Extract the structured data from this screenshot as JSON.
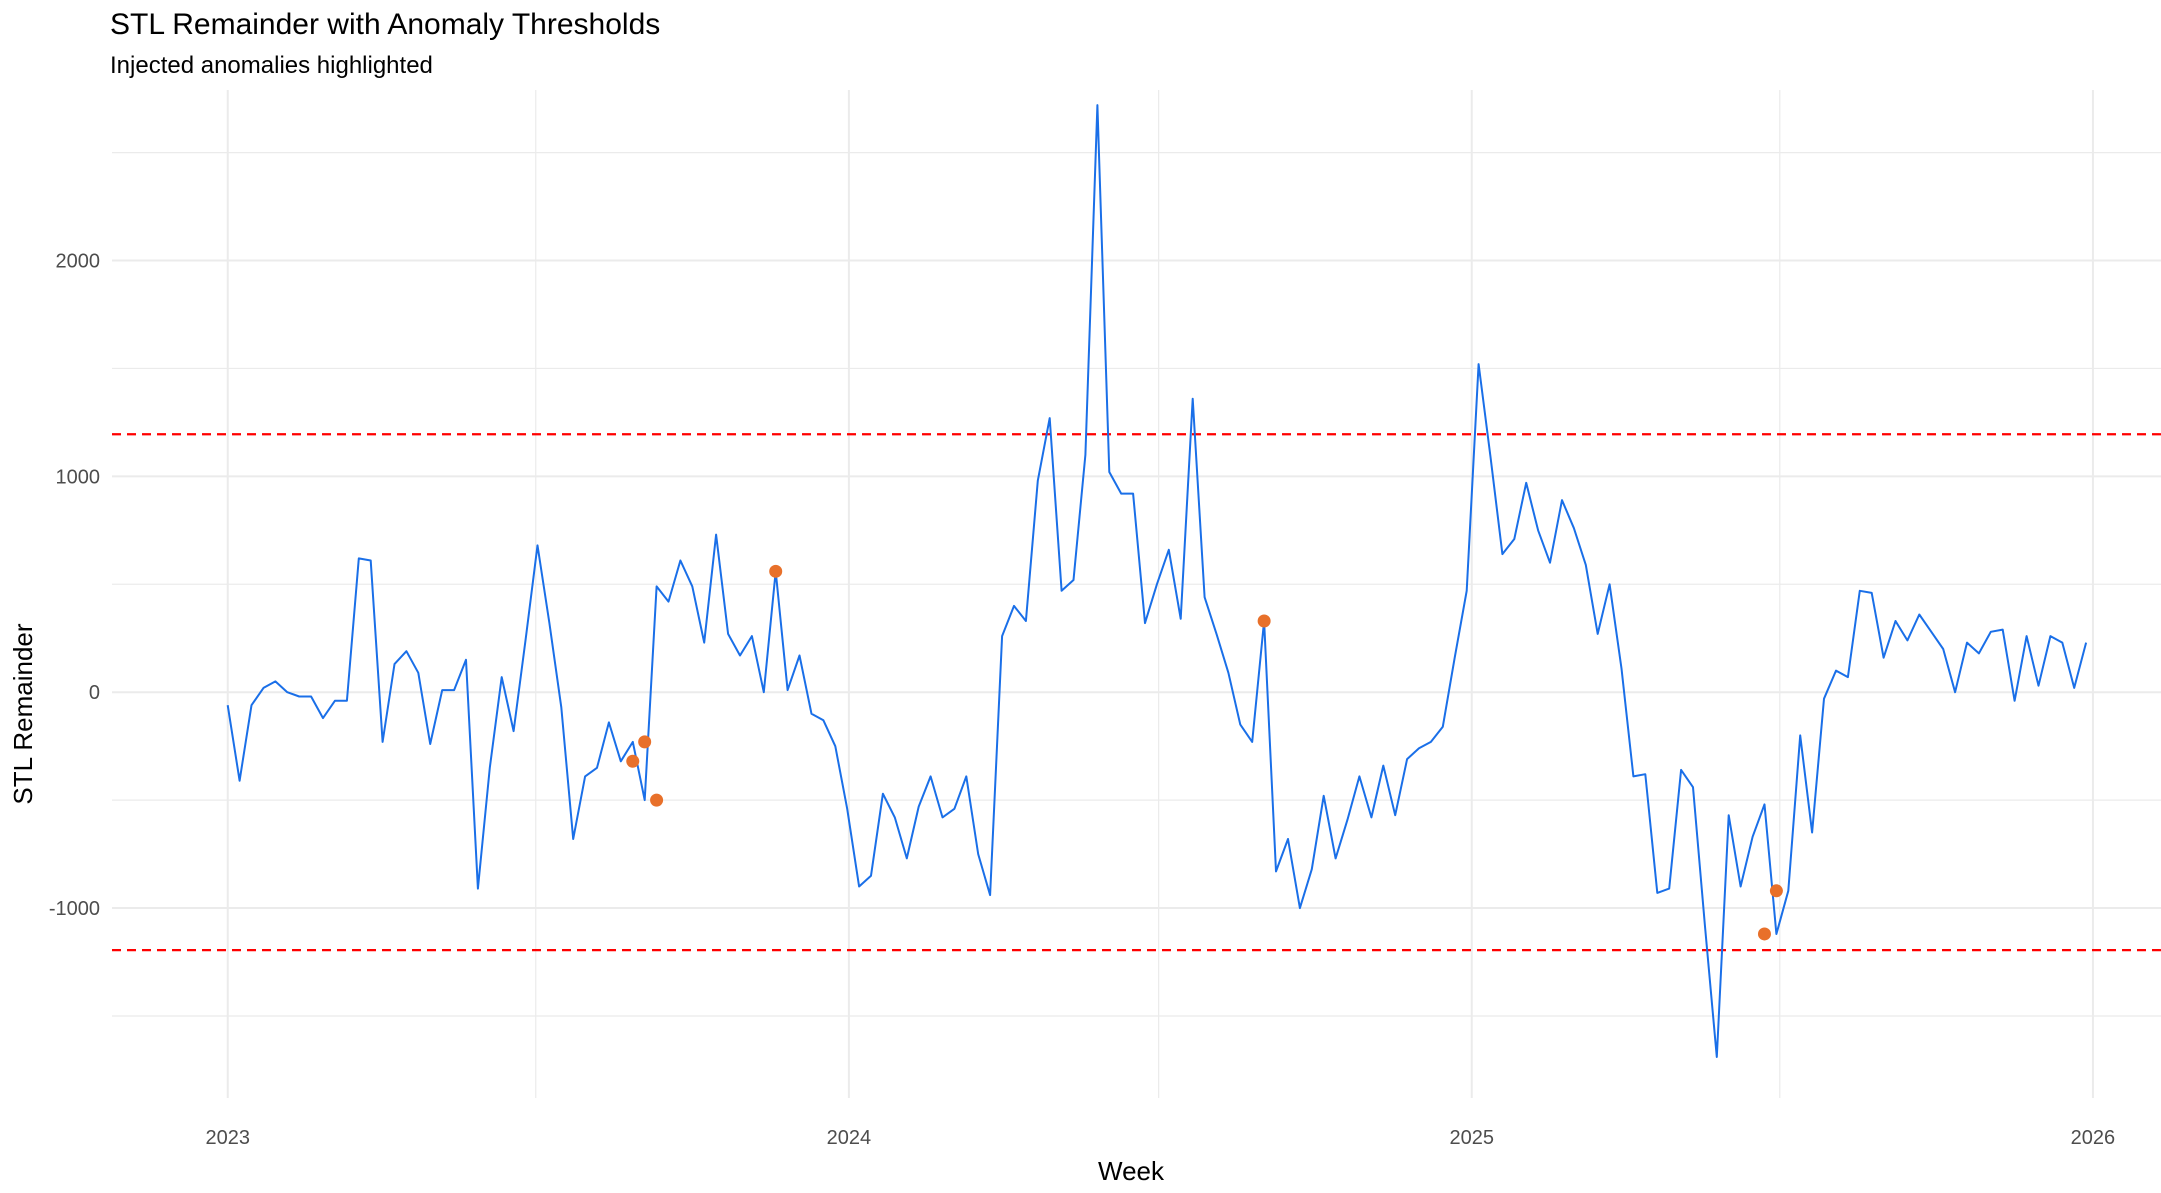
{
  "chart_data": {
    "type": "line",
    "title": "STL Remainder with Anomaly Thresholds",
    "subtitle": "Injected anomalies highlighted",
    "xlabel": "Week",
    "ylabel": "STL Remainder",
    "x_tick_labels": [
      "2023",
      "2024",
      "2025",
      "2026"
    ],
    "y_tick_labels": [
      "-1000",
      "0",
      "1000",
      "2000"
    ],
    "xlim": [
      "2022-10-25",
      "2026-02-10"
    ],
    "ylim": [
      -1880,
      2790
    ],
    "grid": true,
    "thresholds": [
      1195,
      -1195
    ],
    "colors": {
      "line": "#1a6fe8",
      "anomaly": "#e8702a",
      "threshold": "#ff0000",
      "grid": "#ebebeb"
    },
    "series": [
      {
        "x_start": "2023-01-01",
        "step_days": 7,
        "values": [
          -60,
          -410,
          -60,
          20,
          50,
          0,
          -20,
          -20,
          -120,
          -40,
          -40,
          620,
          610,
          -230,
          130,
          190,
          90,
          -240,
          10,
          10,
          150,
          -910,
          -350,
          70,
          -180,
          240,
          680,
          320,
          -70,
          -680,
          -390,
          -350,
          -140,
          -320,
          -230,
          -500,
          490,
          420,
          610,
          490,
          230,
          730,
          270,
          170,
          260,
          0,
          560,
          10,
          170,
          -100,
          -130,
          -250,
          -540,
          -900,
          -850,
          -470,
          -580,
          -770,
          -530,
          -390,
          -580,
          -540,
          -390,
          -750,
          -940,
          260,
          400,
          330,
          980,
          1270,
          470,
          520,
          1100,
          2720,
          1020,
          920,
          920,
          320,
          500,
          660,
          340,
          1360,
          440,
          270,
          90,
          -150,
          -230,
          330,
          -830,
          -680,
          -1000,
          -820,
          -480,
          -770,
          -590,
          -390,
          -580,
          -340,
          -570,
          -310,
          -260,
          -230,
          -160,
          160,
          470,
          1520,
          1090,
          640,
          710,
          970,
          750,
          600,
          890,
          760,
          590,
          270,
          500,
          110,
          -390,
          -380,
          -930,
          -910,
          -360,
          -440,
          -1080,
          -1690,
          -570,
          -900,
          -670,
          -520,
          -1120,
          -920,
          -200,
          -650,
          -30,
          100,
          70,
          470,
          460,
          160,
          330,
          240,
          360,
          280,
          200,
          0,
          230,
          180,
          280,
          290,
          -40,
          260,
          30,
          260,
          230,
          20,
          230
        ]
      }
    ],
    "anomalies": [
      {
        "x": "2023-08-27",
        "y": -320
      },
      {
        "x": "2023-09-03",
        "y": -230
      },
      {
        "x": "2023-09-10",
        "y": -500
      },
      {
        "x": "2023-11-19",
        "y": 560
      },
      {
        "x": "2024-09-01",
        "y": 330
      },
      {
        "x": "2025-06-22",
        "y": -1120
      },
      {
        "x": "2025-06-29",
        "y": -920
      }
    ]
  }
}
